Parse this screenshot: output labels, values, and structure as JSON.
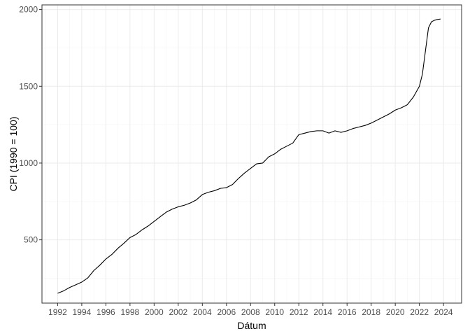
{
  "chart_data": {
    "type": "line",
    "title": "",
    "xlabel": "Dátum",
    "ylabel": "CPI (1990 = 100)",
    "xlim": [
      1990.7,
      2025.5
    ],
    "ylim": [
      88,
      2030
    ],
    "x_ticks": [
      1992,
      1994,
      1996,
      1998,
      2000,
      2002,
      2004,
      2006,
      2008,
      2010,
      2012,
      2014,
      2016,
      2018,
      2020,
      2022,
      2024
    ],
    "x_tick_labels": [
      "1992",
      "1994",
      "1996",
      "1998",
      "2000",
      "2002",
      "2004",
      "2006",
      "2008",
      "2010",
      "2012",
      "2014",
      "2016",
      "2018",
      "2020",
      "2022",
      "2024"
    ],
    "y_ticks": [
      500,
      1000,
      1500,
      2000
    ],
    "y_tick_labels": [
      "500",
      "1000",
      "1500",
      "2000"
    ],
    "grid": true,
    "legend": "none",
    "colors": {
      "line": "#000000",
      "grid_major": "#ebebeb",
      "grid_minor": "#f5f5f5",
      "panel_border": "#333333"
    },
    "series": [
      {
        "x": [
          1992.0,
          1992.5,
          1993.0,
          1993.5,
          1994.0,
          1994.5,
          1995.0,
          1995.5,
          1996.0,
          1996.5,
          1997.0,
          1997.5,
          1998.0,
          1998.5,
          1999.0,
          1999.5,
          2000.0,
          2000.5,
          2001.0,
          2001.5,
          2002.0,
          2002.5,
          2003.0,
          2003.5,
          2004.0,
          2004.5,
          2005.0,
          2005.5,
          2006.0,
          2006.5,
          2007.0,
          2007.5,
          2008.0,
          2008.5,
          2009.0,
          2009.5,
          2010.0,
          2010.5,
          2011.0,
          2011.5,
          2012.0,
          2012.5,
          2013.0,
          2013.5,
          2014.0,
          2014.5,
          2015.0,
          2015.5,
          2016.0,
          2016.5,
          2017.0,
          2017.5,
          2018.0,
          2018.5,
          2019.0,
          2019.5,
          2020.0,
          2020.5,
          2021.0,
          2021.5,
          2022.0,
          2022.25,
          2022.5,
          2022.75,
          2023.0,
          2023.25,
          2023.5,
          2023.75
        ],
        "values": [
          152,
          168,
          190,
          207,
          225,
          252,
          300,
          335,
          375,
          405,
          445,
          478,
          515,
          535,
          565,
          590,
          620,
          650,
          680,
          700,
          715,
          725,
          740,
          760,
          795,
          810,
          820,
          835,
          840,
          860,
          900,
          935,
          965,
          995,
          1000,
          1040,
          1060,
          1090,
          1110,
          1130,
          1185,
          1195,
          1205,
          1210,
          1210,
          1195,
          1210,
          1200,
          1210,
          1225,
          1235,
          1245,
          1260,
          1280,
          1300,
          1320,
          1345,
          1360,
          1380,
          1430,
          1500,
          1580,
          1730,
          1880,
          1920,
          1930,
          1935,
          1938
        ]
      }
    ]
  }
}
